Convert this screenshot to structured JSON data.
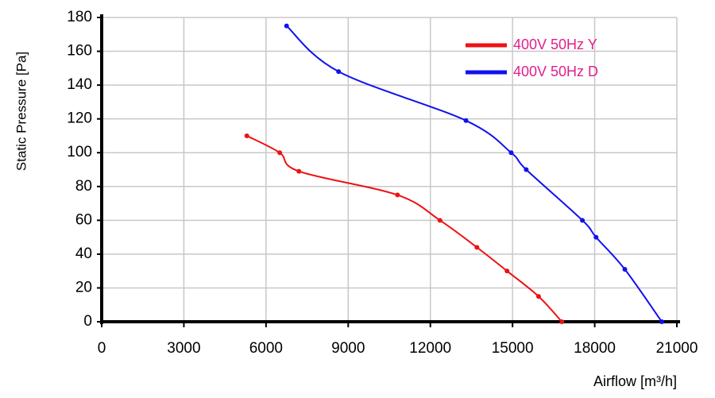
{
  "chart_data": {
    "type": "line",
    "y_label": "Static Pressure [Pa]",
    "x_label": "Airflow [m³/h]",
    "xlim": [
      0,
      21000
    ],
    "xticks": [
      0,
      3000,
      6000,
      9000,
      12000,
      15000,
      18000,
      21000
    ],
    "ylim": [
      0,
      180
    ],
    "yticks": [
      0,
      20,
      40,
      60,
      80,
      100,
      120,
      140,
      160,
      180
    ],
    "grid": true,
    "legend": "upper right",
    "series": [
      {
        "name": "400V 50Hz Y",
        "color": "#ee1111",
        "x": [
          5300,
          6500,
          7200,
          10800,
          12350,
          13700,
          14800,
          15950,
          16800
        ],
        "values": [
          110,
          100,
          89,
          75,
          60,
          44,
          30,
          15,
          0
        ]
      },
      {
        "name": "400V 50Hz D",
        "color": "#1111ee",
        "x": [
          6750,
          8650,
          13300,
          14950,
          15500,
          17550,
          18050,
          19100,
          20450
        ],
        "values": [
          175,
          148,
          119,
          100,
          90,
          60,
          50,
          31,
          0
        ]
      }
    ]
  }
}
